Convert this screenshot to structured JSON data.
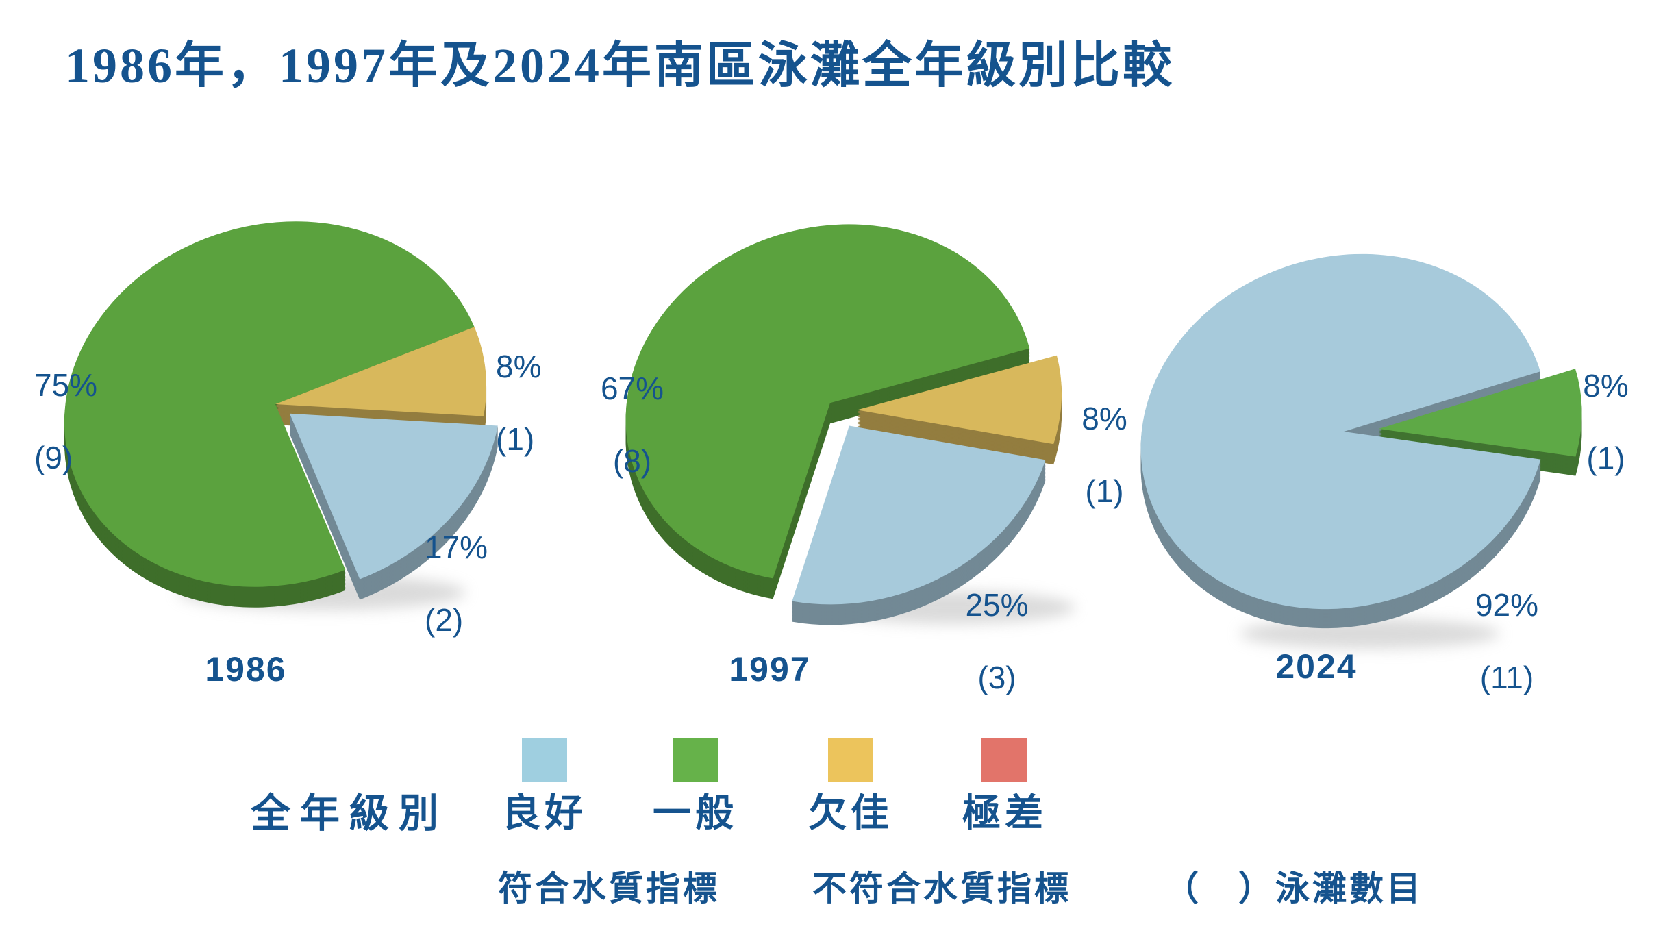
{
  "title": "1986年，1997年及2024年南區泳灘全年級別比較",
  "text_color": "#15538E",
  "chart_data": [
    {
      "type": "pie",
      "year": "1986",
      "slices": [
        {
          "label": "一般",
          "percent": 75,
          "count": 9,
          "percent_label": "75%",
          "count_label": "(9)",
          "color": "#5ba23e"
        },
        {
          "label": "欠佳",
          "percent": 8,
          "count": 1,
          "percent_label": "8%",
          "count_label": "(1)",
          "color": "#d8b85c"
        },
        {
          "label": "良好",
          "percent": 17,
          "count": 2,
          "percent_label": "17%",
          "count_label": "(2)",
          "color": "#a7cadb"
        }
      ]
    },
    {
      "type": "pie",
      "year": "1997",
      "slices": [
        {
          "label": "一般",
          "percent": 67,
          "count": 8,
          "percent_label": "67%",
          "count_label": "(8)",
          "color": "#5ba23e"
        },
        {
          "label": "欠佳",
          "percent": 8,
          "count": 1,
          "percent_label": "8%",
          "count_label": "(1)",
          "color": "#d8b85c"
        },
        {
          "label": "良好",
          "percent": 25,
          "count": 3,
          "percent_label": "25%",
          "count_label": "(3)",
          "color": "#a7cadb"
        }
      ]
    },
    {
      "type": "pie",
      "year": "2024",
      "slices": [
        {
          "label": "良好",
          "percent": 92,
          "count": 11,
          "percent_label": "92%",
          "count_label": "(11)",
          "color": "#a7cadb"
        },
        {
          "label": "一般",
          "percent": 8,
          "count": 1,
          "percent_label": "8%",
          "count_label": "(1)",
          "color": "#5ea946"
        }
      ]
    }
  ],
  "legend": {
    "title": "全年級別",
    "items": [
      {
        "label": "良好",
        "color": "#9fcfe0"
      },
      {
        "label": "一般",
        "color": "#66b24a"
      },
      {
        "label": "欠佳",
        "color": "#ecc45c"
      },
      {
        "label": "極差",
        "color": "#e2746a"
      }
    ],
    "notes": [
      {
        "label": "符合水質指標"
      },
      {
        "label": "不符合水質指標"
      },
      {
        "label": "（　）泳灘數目"
      }
    ]
  }
}
